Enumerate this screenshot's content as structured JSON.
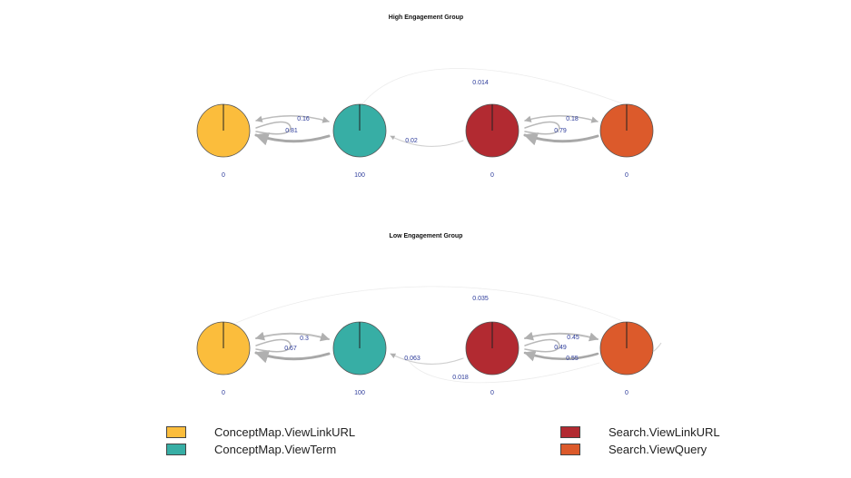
{
  "panels": [
    {
      "title": "High Engagement Group",
      "nodes": [
        {
          "id": "ConceptMap.ViewLinkURL",
          "value": "0"
        },
        {
          "id": "ConceptMap.ViewTerm",
          "value": "100"
        },
        {
          "id": "Search.ViewLinkURL",
          "value": "0"
        },
        {
          "id": "Search.ViewQuery",
          "value": "0"
        }
      ],
      "edge_labels": {
        "top": "0.014",
        "cm_upper": "0.16",
        "cm_lower": "0.81",
        "mid": "0.02",
        "s_upper": "0.18",
        "s_lower": "0.79"
      }
    },
    {
      "title": "Low Engagement Group",
      "nodes": [
        {
          "id": "ConceptMap.ViewLinkURL",
          "value": "0"
        },
        {
          "id": "ConceptMap.ViewTerm",
          "value": "100"
        },
        {
          "id": "Search.ViewLinkURL",
          "value": "0"
        },
        {
          "id": "Search.ViewQuery",
          "value": "0"
        }
      ],
      "edge_labels": {
        "top": "0.035",
        "cm_upper": "0.3",
        "cm_lower": "0.67",
        "mid": "0.063",
        "bottom": "0.018",
        "s_upper": "0.45",
        "s_mid": "0.49",
        "s_lower": "0.55"
      }
    }
  ],
  "legend": [
    {
      "label": "ConceptMap.ViewLinkURL",
      "color": "#fbbd3c"
    },
    {
      "label": "ConceptMap.ViewTerm",
      "color": "#37aea5"
    },
    {
      "label": "Search.ViewLinkURL",
      "color": "#b22a31"
    },
    {
      "label": "Search.ViewQuery",
      "color": "#dc5a2b"
    }
  ]
}
